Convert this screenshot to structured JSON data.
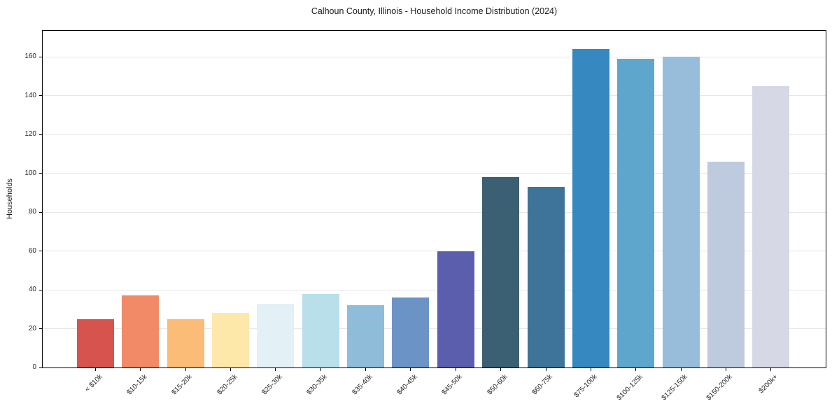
{
  "chart_data": {
    "type": "bar",
    "title": "Calhoun County, Illinois - Household Income Distribution (2024)",
    "ylabel": "Households",
    "categories": [
      "< $10k",
      "$10-15k",
      "$15-20k",
      "$20-25k",
      "$25-30k",
      "$30-35k",
      "$35-40k",
      "$40-45k",
      "$45-50k",
      "$50-60k",
      "$60-75k",
      "$75-100k",
      "$100-125k",
      "$125-150k",
      "$150-200k",
      "$200k+"
    ],
    "values": [
      25,
      37,
      25,
      28,
      33,
      38,
      32,
      36,
      60,
      98,
      93,
      164,
      159,
      160,
      106,
      145
    ],
    "bar_colors": [
      "#d6544d",
      "#f28a67",
      "#fbbc77",
      "#fde8a9",
      "#e3f0f5",
      "#b9e0ea",
      "#8fbcd8",
      "#6b93c5",
      "#5a5ead",
      "#3b6073",
      "#3e7499",
      "#3588c0",
      "#5ea6cb",
      "#97bddb",
      "#becade",
      "#d7d8e6"
    ],
    "ylim": [
      0,
      173.5
    ],
    "yticks": [
      0,
      20,
      40,
      60,
      80,
      100,
      120,
      140,
      160
    ],
    "x_tick_rotation_deg": 45,
    "grid": "horizontal",
    "legend": "none",
    "grid_color": "#e7e7e7",
    "spine_color": "#000000",
    "text_color": "#262626",
    "background": "#ffffff"
  }
}
